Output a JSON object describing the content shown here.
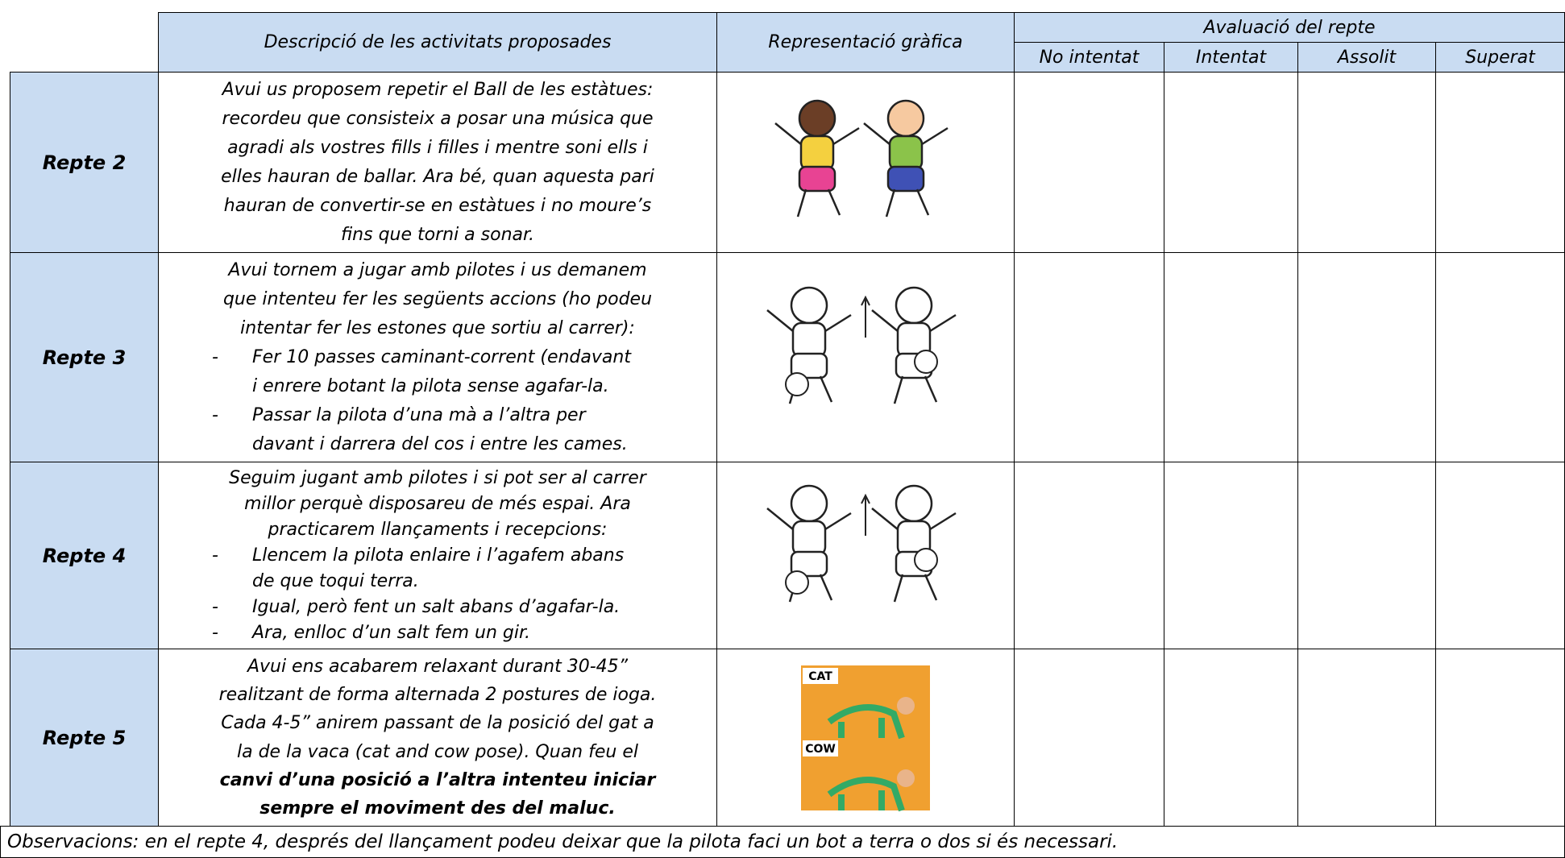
{
  "header": {
    "description": "Descripció de les activitats proposades",
    "graphic": "Representació gràfica",
    "evaluation": "Avaluació del repte",
    "levels": [
      "No intentat",
      "Intentat",
      "Assolit",
      "Superat"
    ]
  },
  "rows": [
    {
      "label": "Repte 2",
      "lines": [
        "Avui us proposem repetir el Ball de les estàtues:",
        "recordeu que consisteix a posar una música que",
        "agradi als vostres fills i filles i mentre soni ells i",
        "elles hauran de ballar. Ara bé, quan aquesta pari",
        "hauran de convertir-se en estàtues i no moure’s",
        "fins que torni a sonar."
      ]
    },
    {
      "label": "Repte 3",
      "lines": [
        "Avui tornem a jugar amb pilotes i us demanem",
        "que intenteu fer les següents accions (ho podeu",
        "intentar fer les estones que sortiu al carrer):",
        {
          "bullet": "-",
          "text": "Fer 10 passes caminant-corrent (endavant"
        },
        {
          "indent": true,
          "text": "i enrere botant la pilota sense agafar-la."
        },
        {
          "bullet": "-",
          "text": "Passar la pilota d’una mà a l’altra per"
        },
        {
          "indent": true,
          "text": "davant i darrera del cos i entre les cames."
        }
      ]
    },
    {
      "label": "Repte 4",
      "lines": [
        "Seguim jugant amb pilotes i si pot ser al carrer",
        "millor perquè disposareu de més espai. Ara",
        "practicarem llançaments i recepcions:",
        {
          "bullet": "-",
          "text": "Llencem la pilota enlaire i l’agafem abans"
        },
        {
          "indent": true,
          "text": "de que toqui terra."
        },
        {
          "bullet": "-",
          "text": "Igual, però fent un salt abans d’agafar-la."
        },
        {
          "bullet": "-",
          "text": "Ara, enlloc d’un salt fem un gir."
        }
      ]
    },
    {
      "label": "Repte 5",
      "graphic_labels": [
        "CAT",
        "COW"
      ],
      "lines": [
        "Avui ens acabarem relaxant durant 30-45”",
        "realitzant de forma alternada 2 postures de ioga.",
        "Cada 4-5” anirem passant de la posició del gat a",
        "la de la vaca (cat and cow pose). Quan feu el",
        {
          "runs": [
            "canvi d’una posició a l’altra ",
            {
              "bold": true,
              "text": "intenteu iniciar"
            }
          ]
        },
        {
          "runs": [
            {
              "bold": true,
              "text": "sempre el moviment des del maluc"
            },
            "."
          ]
        }
      ]
    }
  ],
  "observations": "Observacions: en el repte 4, després del llançament podeu deixar que la pilota faci un bot a terra o dos si és necessari."
}
